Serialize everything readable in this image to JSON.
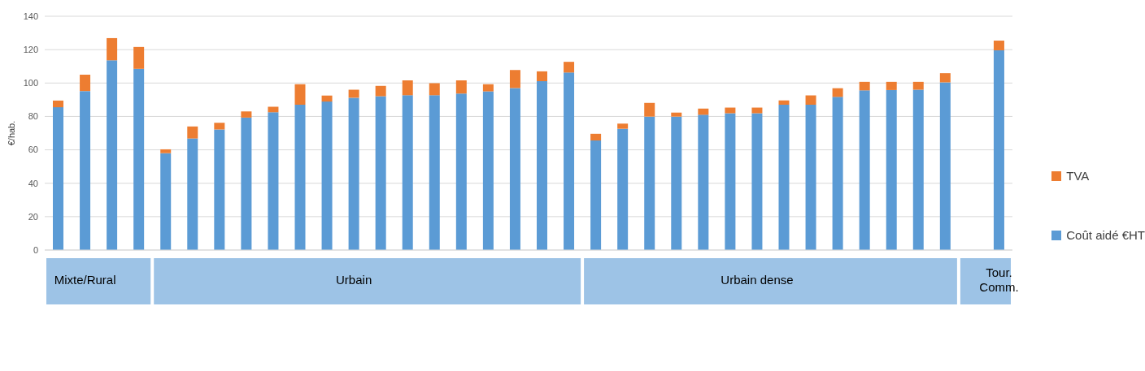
{
  "chart_data": {
    "type": "bar",
    "stacked": true,
    "ylabel": "€/hab.",
    "ylim": [
      0,
      140
    ],
    "yticks": [
      0,
      20,
      40,
      60,
      80,
      100,
      120,
      140
    ],
    "grid": "y",
    "legend": "right",
    "categories": [
      null,
      "Mixte/Rural",
      null,
      null,
      null,
      null,
      null,
      null,
      null,
      null,
      null,
      "Urbain",
      null,
      null,
      null,
      null,
      null,
      null,
      null,
      null,
      null,
      null,
      null,
      null,
      null,
      null,
      "Urbain dense",
      null,
      null,
      null,
      null,
      null,
      null,
      null,
      null,
      "Tour. Comm."
    ],
    "series": [
      {
        "name": "Coût aidé €HT",
        "color": "#5b9bd5",
        "values": [
          85.5,
          95.2,
          113.6,
          108.5,
          58.0,
          66.8,
          72.2,
          79.3,
          82.5,
          87.0,
          88.9,
          91.2,
          92.1,
          92.7,
          92.7,
          93.7,
          95.0,
          97.0,
          101.1,
          106.3,
          65.6,
          72.6,
          79.9,
          79.9,
          81.0,
          81.9,
          81.9,
          87.0,
          87.0,
          91.7,
          95.6,
          95.8,
          96.0,
          100.4,
          null,
          119.6
        ]
      },
      {
        "name": "TVA",
        "color": "#ed7d31",
        "values": [
          4.0,
          9.8,
          13.3,
          13.1,
          2.3,
          7.2,
          4.0,
          3.7,
          3.3,
          12.3,
          3.6,
          4.8,
          6.2,
          8.9,
          7.2,
          7.9,
          4.3,
          10.8,
          5.9,
          6.4,
          4.0,
          3.1,
          8.2,
          2.4,
          3.7,
          3.4,
          3.4,
          2.6,
          5.6,
          5.2,
          5.1,
          4.9,
          4.7,
          5.5,
          null,
          5.8
        ]
      }
    ]
  }
}
